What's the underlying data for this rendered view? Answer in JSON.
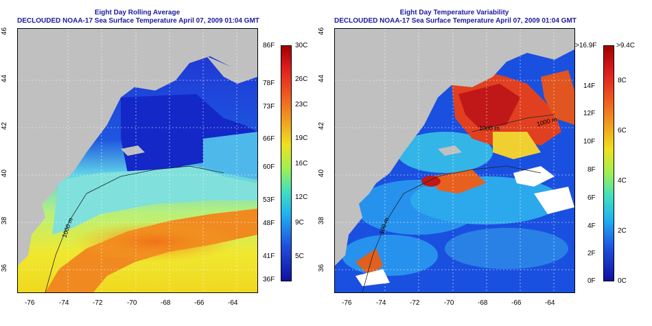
{
  "left_map": {
    "title_line1": "Eight Day Rolling Average",
    "title_line2": "DECLOUDED NOAA-17 Sea Surface Temperature April 07, 2009 01:04 GMT",
    "x_ticks": [
      "-76",
      "-74",
      "-72",
      "-70",
      "-68",
      "-66",
      "-64"
    ],
    "y_ticks": [
      "46",
      "44",
      "42",
      "40",
      "38",
      "36"
    ],
    "colorbar_f": [
      "86F",
      "78F",
      "73F",
      "66F",
      "60F",
      "53F",
      "48F",
      "41F",
      "36F"
    ],
    "colorbar_c": [
      "30C",
      "26C",
      "23C",
      "19C",
      "16C",
      "12C",
      "9C",
      "5C"
    ],
    "contour_label": "1000 m"
  },
  "right_map": {
    "title_line1": "Eight Day Temperature Variability",
    "title_line2": "DECLOUDED NOAA-17 Sea Surface Temperature April 07, 2009 01:04 GMT",
    "x_ticks": [
      "-76",
      "-74",
      "-72",
      "-70",
      "-68",
      "-66",
      "-64"
    ],
    "y_ticks": [
      "46",
      "44",
      "42",
      "40",
      "38",
      "36"
    ],
    "colorbar_f": [
      ">16.9F",
      "14F",
      "12F",
      "10F",
      "8F",
      "6F",
      "4F",
      "2F",
      "0F"
    ],
    "colorbar_c": [
      ">9.4C",
      "8C",
      "6C",
      "4C",
      "2C",
      "0C"
    ],
    "contour_labels": [
      "1000 m",
      "1000 m",
      "100 m"
    ]
  },
  "colors": {
    "land": "#c0c0c0",
    "title": "#1a1aa0"
  }
}
